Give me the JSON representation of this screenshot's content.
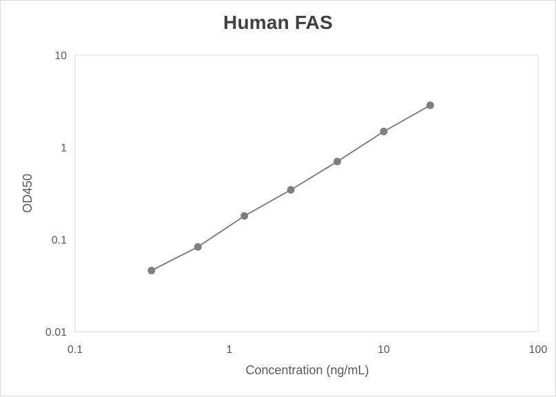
{
  "chart_data": {
    "type": "scatter",
    "title": "Human FAS",
    "xlabel": "Concentration (ng/mL)",
    "ylabel": "OD450",
    "x_scale": "log",
    "y_scale": "log",
    "xlim": [
      0.1,
      100
    ],
    "ylim": [
      0.01,
      10
    ],
    "x_ticks": [
      "0.1",
      "1",
      "10",
      "100"
    ],
    "y_ticks": [
      "0.01",
      "0.1",
      "1",
      "10"
    ],
    "grid": false,
    "legend": "none",
    "series": [
      {
        "x": [
          0.3125,
          0.625,
          1.25,
          2.5,
          5,
          10,
          20
        ],
        "y": [
          0.046,
          0.083,
          0.18,
          0.345,
          0.7,
          1.48,
          2.85
        ],
        "color": "#7f7f7f",
        "markers": true,
        "line": true
      }
    ]
  }
}
